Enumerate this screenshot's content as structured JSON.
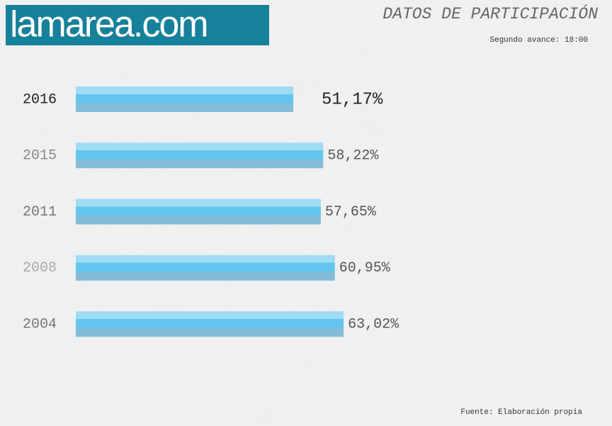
{
  "brand": "lamarea.com",
  "chart_data": {
    "type": "bar",
    "orientation": "horizontal",
    "title": "DATOS DE PARTICIPACIÓN",
    "subtitle": "Segundo avance: 18:00",
    "source": "Fuente: Elaboración propia",
    "categories": [
      "2016",
      "2015",
      "2011",
      "2008",
      "2004"
    ],
    "values": [
      51.17,
      58.22,
      57.65,
      60.95,
      63.02
    ],
    "value_labels": [
      "51,17%",
      "58,22%",
      "57,65%",
      "60,95%",
      "63,02%"
    ],
    "color": "#62c6ee",
    "xlim": [
      0,
      80
    ]
  }
}
